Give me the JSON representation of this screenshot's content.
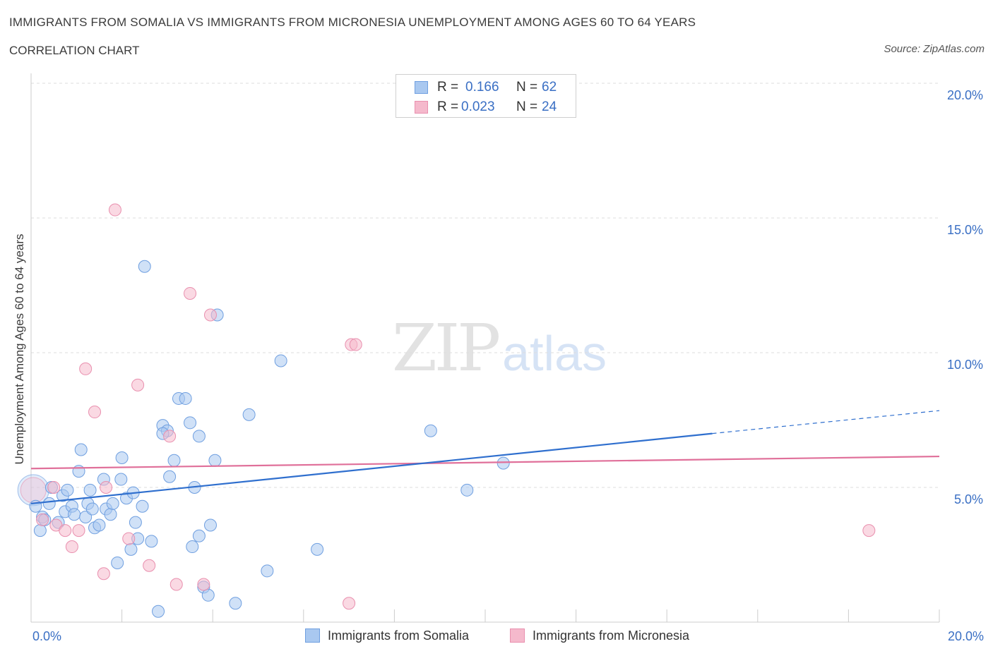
{
  "header": {
    "title": "IMMIGRANTS FROM SOMALIA VS IMMIGRANTS FROM MICRONESIA UNEMPLOYMENT AMONG AGES 60 TO 64 YEARS",
    "subtitle": "CORRELATION CHART",
    "source": "Source: ZipAtlas.com"
  },
  "watermark": {
    "zip": "ZIP",
    "atlas": "atlas"
  },
  "legend_top": {
    "rows": [
      {
        "r_label": "R =",
        "r_value": "0.166",
        "n_label": "N =",
        "n_value": "62"
      },
      {
        "r_label": "R =",
        "r_value": "0.023",
        "n_label": "N =",
        "n_value": "24"
      }
    ]
  },
  "colors": {
    "somalia_fill": "#a9c8f0",
    "somalia_stroke": "#6f9fe0",
    "somalia_line": "#2f6fce",
    "micronesia_fill": "#f5b9cc",
    "micronesia_stroke": "#e98fae",
    "micronesia_line": "#e0709a",
    "axis_label": "#3a6fc4",
    "grid": "#dedede"
  },
  "chart_data": {
    "type": "scatter",
    "title": "IMMIGRANTS FROM SOMALIA VS IMMIGRANTS FROM MICRONESIA UNEMPLOYMENT AMONG AGES 60 TO 64 YEARS",
    "subtitle": "CORRELATION CHART",
    "xlabel": "",
    "ylabel": "Unemployment Among Ages 60 to 64 years",
    "xlim": [
      0,
      20
    ],
    "ylim": [
      0,
      20
    ],
    "x_tick_labels": [
      "0.0%",
      "20.0%"
    ],
    "y_tick_labels": [
      "5.0%",
      "10.0%",
      "15.0%",
      "20.0%"
    ],
    "y_ticks": [
      5,
      10,
      15,
      20
    ],
    "grid": true,
    "legend_position": "bottom",
    "series": [
      {
        "name": "Immigrants from Somalia",
        "r": 0.166,
        "n": 62,
        "trend": {
          "x": [
            0,
            15
          ],
          "y": [
            4.4,
            7.0
          ],
          "dashed_to": {
            "x": 20,
            "y": 7.85
          }
        },
        "points": [
          [
            0.05,
            4.9
          ],
          [
            0.1,
            4.3
          ],
          [
            0.2,
            3.4
          ],
          [
            0.25,
            3.9
          ],
          [
            0.3,
            3.8
          ],
          [
            0.4,
            4.4
          ],
          [
            0.45,
            5.0
          ],
          [
            0.6,
            3.7
          ],
          [
            0.7,
            4.7
          ],
          [
            0.75,
            4.1
          ],
          [
            0.8,
            4.9
          ],
          [
            0.9,
            4.3
          ],
          [
            0.95,
            4.0
          ],
          [
            1.05,
            5.6
          ],
          [
            1.1,
            6.4
          ],
          [
            1.2,
            3.9
          ],
          [
            1.25,
            4.4
          ],
          [
            1.3,
            4.9
          ],
          [
            1.35,
            4.2
          ],
          [
            1.4,
            3.5
          ],
          [
            1.5,
            3.6
          ],
          [
            1.6,
            5.3
          ],
          [
            1.65,
            4.2
          ],
          [
            1.75,
            4.0
          ],
          [
            1.8,
            4.4
          ],
          [
            1.9,
            2.2
          ],
          [
            1.98,
            5.3
          ],
          [
            2.0,
            6.1
          ],
          [
            2.1,
            4.6
          ],
          [
            2.2,
            2.7
          ],
          [
            2.25,
            4.8
          ],
          [
            2.3,
            3.7
          ],
          [
            2.35,
            3.1
          ],
          [
            2.45,
            4.3
          ],
          [
            2.5,
            13.2
          ],
          [
            2.65,
            3.0
          ],
          [
            2.8,
            0.4
          ],
          [
            2.9,
            7.3
          ],
          [
            3.0,
            7.1
          ],
          [
            3.05,
            5.4
          ],
          [
            3.15,
            6.0
          ],
          [
            3.25,
            8.3
          ],
          [
            3.4,
            8.3
          ],
          [
            3.5,
            7.4
          ],
          [
            3.55,
            2.8
          ],
          [
            3.6,
            5.0
          ],
          [
            3.7,
            6.9
          ],
          [
            3.7,
            3.2
          ],
          [
            3.8,
            1.3
          ],
          [
            3.9,
            1.0
          ],
          [
            3.95,
            3.6
          ],
          [
            4.05,
            6.0
          ],
          [
            4.1,
            11.4
          ],
          [
            4.5,
            0.7
          ],
          [
            4.8,
            7.7
          ],
          [
            5.2,
            1.9
          ],
          [
            5.5,
            9.7
          ],
          [
            6.3,
            2.7
          ],
          [
            8.8,
            7.1
          ],
          [
            9.6,
            4.9
          ],
          [
            10.4,
            5.9
          ],
          [
            2.9,
            7.0
          ]
        ]
      },
      {
        "name": "Immigrants from Micronesia",
        "r": 0.023,
        "n": 24,
        "trend": {
          "x": [
            0,
            20
          ],
          "y": [
            5.7,
            6.15
          ]
        },
        "points": [
          [
            0.05,
            4.9
          ],
          [
            0.25,
            3.8
          ],
          [
            0.5,
            5.0
          ],
          [
            0.55,
            3.6
          ],
          [
            0.75,
            3.4
          ],
          [
            0.9,
            2.8
          ],
          [
            1.05,
            3.4
          ],
          [
            1.2,
            9.4
          ],
          [
            1.4,
            7.8
          ],
          [
            1.6,
            1.8
          ],
          [
            1.65,
            5.0
          ],
          [
            1.85,
            15.3
          ],
          [
            2.15,
            3.1
          ],
          [
            2.35,
            8.8
          ],
          [
            2.6,
            2.1
          ],
          [
            3.05,
            6.9
          ],
          [
            3.2,
            1.4
          ],
          [
            3.5,
            12.2
          ],
          [
            3.8,
            1.4
          ],
          [
            3.95,
            11.4
          ],
          [
            7.05,
            10.3
          ],
          [
            7.15,
            10.3
          ],
          [
            7.0,
            0.7
          ],
          [
            18.45,
            3.4
          ]
        ]
      }
    ]
  },
  "legend_bottom": {
    "items": [
      {
        "label": "Immigrants from Somalia"
      },
      {
        "label": "Immigrants from Micronesia"
      }
    ]
  }
}
